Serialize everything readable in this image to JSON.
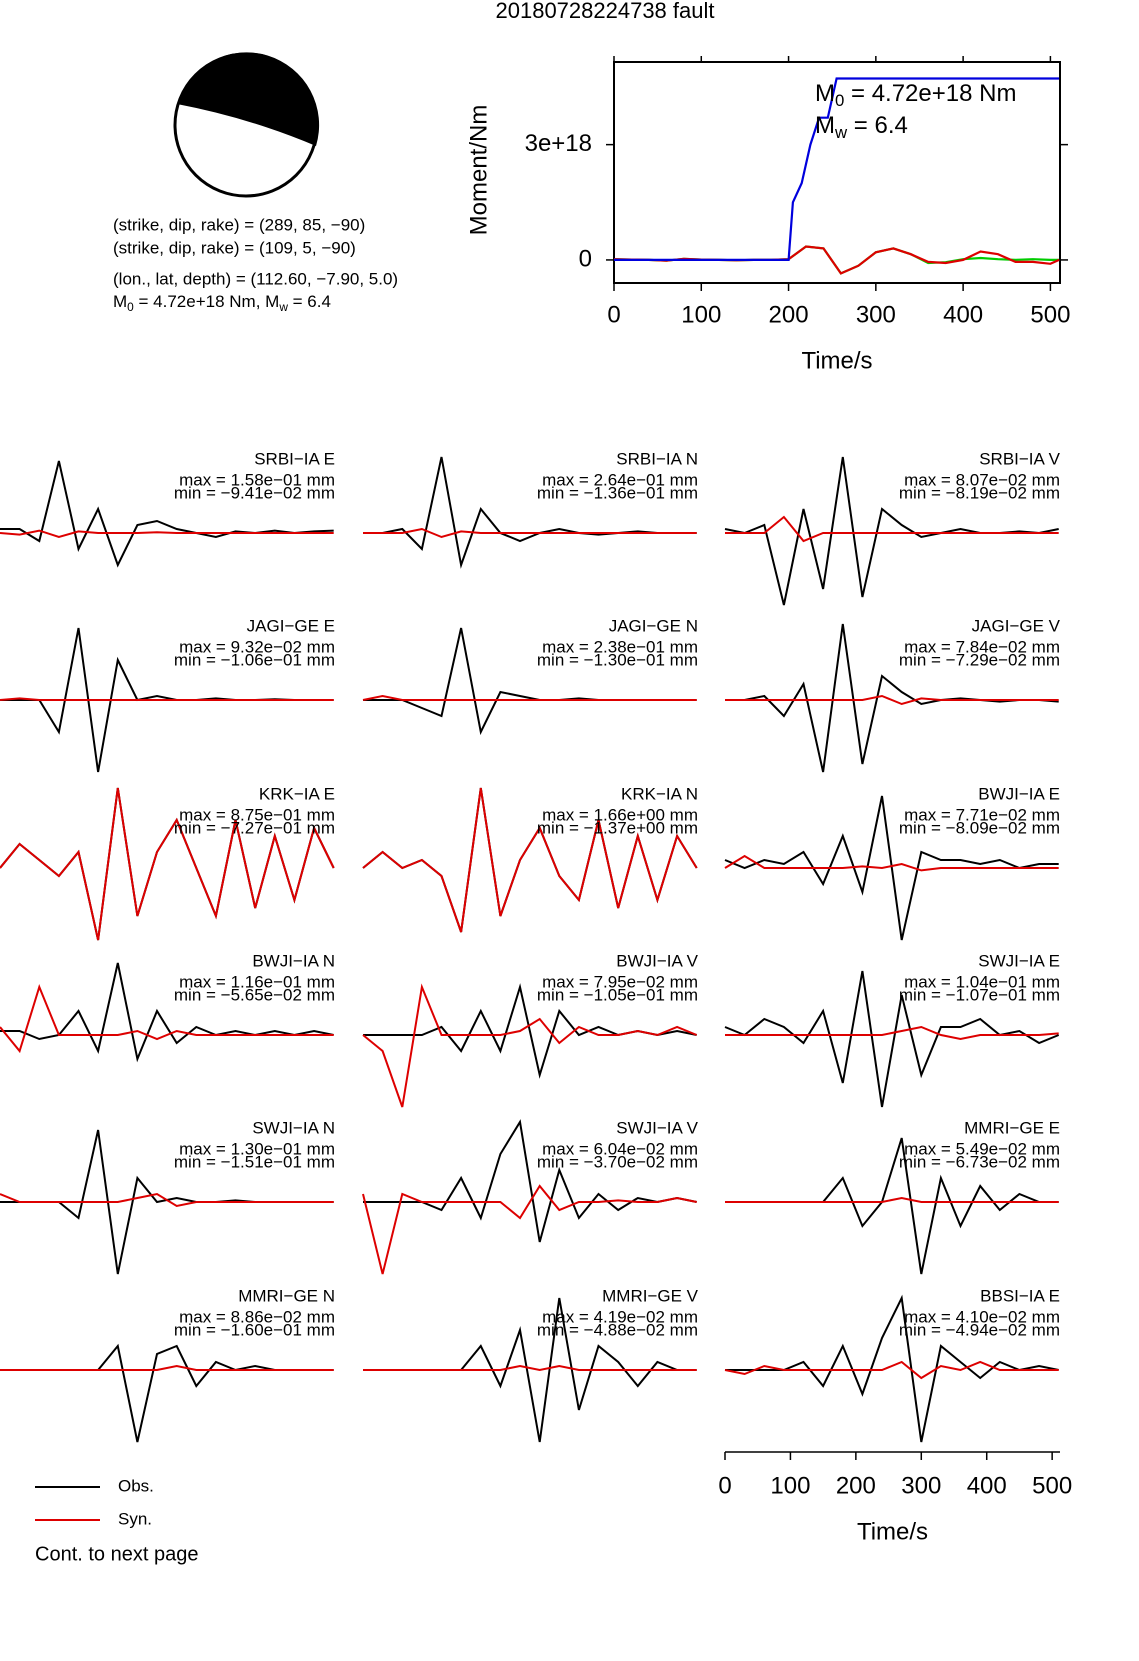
{
  "title": "20180728224738 fault",
  "mechanism": {
    "lines": [
      "(strike, dip, rake) = (289, 85, −90)",
      "(strike, dip, rake) = (109, 5, −90)",
      "(lon., lat, depth) = (112.60, −7.90, 5.0)"
    ],
    "moment_line": [
      {
        "text": "M"
      },
      {
        "sub": "0"
      },
      {
        "text": " = 4.72e+18 Nm, M"
      },
      {
        "sub": "w"
      },
      {
        "text": " = 6.4"
      }
    ]
  },
  "chart_data": [
    {
      "type": "line",
      "xlabel": "Time/s",
      "ylabel": "Moment/Nm",
      "xlim": [
        0,
        511
      ],
      "xticks": [
        0,
        100,
        200,
        300,
        400,
        500
      ],
      "ylim": [
        -6e+17,
        5.15e+18
      ],
      "yticks": [
        0,
        {
          "value": 3e+18,
          "label": "3e+18"
        }
      ],
      "annotations": [
        [
          {
            "text": "M"
          },
          {
            "sub": "0"
          },
          {
            "text": " = 4.72e+18 Nm"
          }
        ],
        [
          {
            "text": "M"
          },
          {
            "sub": "w"
          },
          {
            "text": " = 6.4"
          }
        ]
      ],
      "series": [
        {
          "color": "#00cc00",
          "x": [
            0,
            20,
            40,
            60,
            80,
            100,
            120,
            140,
            160,
            180,
            200,
            220,
            240,
            260,
            280,
            300,
            320,
            340,
            360,
            380,
            400,
            420,
            440,
            460,
            480,
            500,
            510
          ],
          "values": [
            2e+16,
            1e+16,
            0,
            -2e+16,
            3e+16,
            1e+16,
            0,
            -1e+16,
            0,
            0,
            2e+16,
            3.5e+17,
            3e+17,
            -3.5e+17,
            -1.5e+17,
            2e+17,
            3e+17,
            1.5e+17,
            -8e+16,
            -6e+16,
            2e+16,
            5e+16,
            2e+16,
            0,
            2e+16,
            0,
            0
          ]
        },
        {
          "color": "#dd0000",
          "x": [
            0,
            20,
            40,
            60,
            80,
            100,
            120,
            140,
            160,
            180,
            200,
            220,
            240,
            260,
            280,
            300,
            320,
            340,
            360,
            380,
            400,
            420,
            440,
            460,
            480,
            500,
            510
          ],
          "values": [
            2e+16,
            1e+16,
            0,
            -2e+16,
            3e+16,
            1e+16,
            0,
            -1e+16,
            0,
            0,
            2e+16,
            3.5e+17,
            3e+17,
            -3.5e+17,
            -1.5e+17,
            2e+17,
            3e+17,
            1.5e+17,
            -5e+16,
            -8e+16,
            0,
            2.2e+17,
            1.5e+17,
            -5e+16,
            -5e+16,
            -1e+17,
            0
          ]
        },
        {
          "color": "#0000dd",
          "x": [
            0,
            200,
            205,
            215,
            225,
            235,
            245,
            255,
            510
          ],
          "values": [
            0,
            0,
            1.5e+18,
            2e+18,
            3e+18,
            3.7e+18,
            3.7e+18,
            4.72e+18,
            4.72e+18
          ]
        }
      ]
    },
    {
      "type": "line",
      "xlabel": "Time/s",
      "xlim": [
        0,
        512
      ],
      "xticks": [
        0,
        100,
        200,
        300,
        400,
        500
      ],
      "x": [
        0,
        30,
        60,
        90,
        120,
        150,
        180,
        210,
        240,
        270,
        300,
        330,
        360,
        390,
        420,
        450,
        480,
        510
      ],
      "series": [
        {
          "name": "Obs.",
          "color": "#000000"
        },
        {
          "name": "Syn.",
          "color": "#dd0000"
        }
      ],
      "note": "Cont. to next page",
      "panels": [
        {
          "station": "SRBI−IA E",
          "max": "max = 1.58e−01 mm",
          "min": "min = −9.41e−02 mm",
          "obs": [
            0.05,
            0.05,
            -0.1,
            0.9,
            -0.2,
            0.3,
            -0.4,
            0.1,
            0.15,
            0.05,
            0,
            -0.05,
            0.02,
            0,
            0.03,
            0,
            0.02,
            0.03
          ],
          "syn": [
            0,
            -0.02,
            0.03,
            -0.05,
            0.02,
            0,
            0,
            0,
            0.01,
            0,
            0,
            0,
            0,
            0,
            0,
            0,
            0,
            0
          ]
        },
        {
          "station": "SRBI−IA N",
          "max": "max = 2.64e−01 mm",
          "min": "min = −1.36e−01 mm",
          "obs": [
            0,
            0,
            0.05,
            -0.2,
            0.95,
            -0.4,
            0.3,
            0,
            -0.1,
            0,
            0.05,
            0,
            -0.02,
            0,
            0.02,
            0,
            0,
            0
          ],
          "syn": [
            0,
            0,
            0,
            0.05,
            -0.05,
            0.02,
            0,
            0,
            0,
            0,
            0,
            0,
            0,
            0,
            0,
            0,
            0,
            0
          ]
        },
        {
          "station": "SRBI−IA V",
          "max": "max = 8.07e−02 mm",
          "min": "min = −8.19e−02 mm",
          "obs": [
            0.05,
            0,
            0.1,
            -0.9,
            0.3,
            -0.7,
            0.95,
            -0.8,
            0.3,
            0.1,
            -0.05,
            0,
            0.05,
            0,
            0,
            0.02,
            0,
            0.05
          ],
          "syn": [
            0,
            0,
            0,
            0.2,
            -0.1,
            0,
            0,
            0,
            0,
            0,
            0,
            0,
            0,
            0,
            0,
            0,
            0,
            0
          ]
        },
        {
          "station": "JAGI−GE E",
          "max": "max = 9.32e−02 mm",
          "min": "min = −1.06e−01 mm",
          "obs": [
            0,
            0,
            0,
            -0.4,
            0.9,
            -0.9,
            0.5,
            0,
            0.05,
            0,
            0,
            0.02,
            0,
            0,
            0.01,
            0,
            0,
            0
          ],
          "syn": [
            0,
            0.02,
            0,
            0,
            0,
            0,
            0,
            0,
            0,
            0,
            0,
            0,
            0,
            0,
            0,
            0,
            0,
            0
          ]
        },
        {
          "station": "JAGI−GE N",
          "max": "max = 2.38e−01 mm",
          "min": "min = −1.30e−01 mm",
          "obs": [
            0,
            0,
            0,
            -0.1,
            -0.2,
            0.9,
            -0.4,
            0.1,
            0.05,
            0,
            0,
            0.02,
            0,
            0,
            0,
            0,
            0,
            0
          ],
          "syn": [
            0,
            0.05,
            0,
            0,
            0,
            0,
            0,
            0,
            0,
            0,
            0,
            0,
            0,
            0,
            0,
            0,
            0,
            0
          ]
        },
        {
          "station": "JAGI−GE V",
          "max": "max = 7.84e−02 mm",
          "min": "min = −7.29e−02 mm",
          "obs": [
            0,
            0,
            0.05,
            -0.2,
            0.2,
            -0.9,
            0.95,
            -0.8,
            0.3,
            0.1,
            -0.05,
            0,
            0.02,
            0,
            -0.02,
            0,
            0,
            -0.02
          ],
          "syn": [
            0,
            0,
            0,
            0,
            0,
            0,
            0,
            0,
            0.05,
            -0.05,
            0.02,
            0,
            0,
            0,
            0,
            0,
            0,
            0
          ]
        },
        {
          "station": "KRK−IA E",
          "max": "max = 8.75e−01 mm",
          "min": "min = −7.27e−01 mm",
          "obs": [
            0,
            0.3,
            0.1,
            -0.1,
            0.2,
            -0.9,
            1.0,
            -0.6,
            0.2,
            0.6,
            0,
            -0.6,
            0.6,
            -0.5,
            0.4,
            -0.4,
            0.5,
            0
          ],
          "syn": [
            0,
            0.3,
            0.1,
            -0.1,
            0.2,
            -0.9,
            1.0,
            -0.6,
            0.2,
            0.6,
            0,
            -0.6,
            0.6,
            -0.5,
            0.4,
            -0.4,
            0.5,
            0
          ]
        },
        {
          "station": "KRK−IA N",
          "max": "max = 1.66e+00 mm",
          "min": "min = −1.37e+00 mm",
          "obs": [
            0,
            0.2,
            0,
            0.1,
            -0.1,
            -0.8,
            1.0,
            -0.6,
            0.1,
            0.5,
            -0.1,
            -0.4,
            0.6,
            -0.5,
            0.4,
            -0.4,
            0.4,
            0
          ],
          "syn": [
            0,
            0.2,
            0,
            0.1,
            -0.1,
            -0.8,
            1.0,
            -0.6,
            0.1,
            0.5,
            -0.1,
            -0.4,
            0.6,
            -0.5,
            0.4,
            -0.4,
            0.4,
            0
          ]
        },
        {
          "station": "BWJI−IA E",
          "max": "max = 7.71e−02 mm",
          "min": "min = −8.09e−02 mm",
          "obs": [
            0.1,
            0,
            0.1,
            0.05,
            0.2,
            -0.2,
            0.4,
            -0.3,
            0.9,
            -0.9,
            0.2,
            0.1,
            0.1,
            0.05,
            0.1,
            0,
            0.05,
            0.05
          ],
          "syn": [
            0,
            0.15,
            0,
            0,
            0,
            0,
            0,
            0.02,
            0,
            0.05,
            -0.03,
            0,
            0,
            0,
            0,
            0,
            0,
            0
          ]
        },
        {
          "station": "BWJI−IA N",
          "max": "max = 1.16e−01 mm",
          "min": "min = −5.65e−02 mm",
          "obs": [
            0.05,
            0.05,
            -0.05,
            0,
            0.3,
            -0.2,
            0.9,
            -0.3,
            0.3,
            -0.1,
            0.1,
            0,
            0.05,
            0,
            0.05,
            0,
            0.05,
            0
          ],
          "syn": [
            0.1,
            -0.2,
            0.6,
            0,
            0,
            0,
            0,
            0.05,
            -0.05,
            0.05,
            0,
            0,
            0,
            0,
            0,
            0,
            0,
            0
          ]
        },
        {
          "station": "BWJI−IA V",
          "max": "max = 7.95e−02 mm",
          "min": "min = −1.05e−01 mm",
          "obs": [
            0,
            0,
            0,
            0,
            0.1,
            -0.2,
            0.3,
            -0.2,
            0.6,
            -0.5,
            0.3,
            0,
            0.1,
            0,
            0.05,
            0,
            0.05,
            0
          ],
          "syn": [
            0,
            -0.2,
            -0.9,
            0.6,
            0,
            0,
            0,
            0,
            0.05,
            0.2,
            -0.1,
            0.1,
            0,
            0,
            0.05,
            0,
            0.1,
            0
          ]
        },
        {
          "station": "SWJI−IA E",
          "max": "max = 1.04e−01 mm",
          "min": "min = −1.07e−01 mm",
          "obs": [
            0.1,
            0,
            0.2,
            0.1,
            -0.1,
            0.3,
            -0.6,
            0.8,
            -0.9,
            0.5,
            -0.5,
            0.1,
            0.1,
            0.2,
            0,
            0.05,
            -0.1,
            0
          ],
          "syn": [
            0,
            0,
            0,
            0,
            0,
            0,
            0,
            0,
            0,
            0.05,
            0.1,
            0,
            -0.05,
            0,
            0,
            0,
            0,
            0.02
          ]
        },
        {
          "station": "SWJI−IA N",
          "max": "max = 1.30e−01 mm",
          "min": "min = −1.51e−01 mm",
          "obs": [
            0,
            0,
            0,
            0,
            -0.2,
            0.9,
            -0.9,
            0.3,
            0,
            0.05,
            0,
            0,
            0.02,
            0,
            0,
            0,
            0,
            0
          ],
          "syn": [
            0.1,
            0,
            0,
            0,
            0,
            0,
            0,
            0.05,
            0.1,
            -0.05,
            0,
            0,
            0,
            0,
            0,
            0,
            0,
            0
          ]
        },
        {
          "station": "SWJI−IA V",
          "max": "max = 6.04e−02 mm",
          "min": "min = −3.70e−02 mm",
          "obs": [
            0,
            0,
            0,
            0,
            -0.1,
            0.3,
            -0.2,
            0.6,
            1.0,
            -0.5,
            0.4,
            -0.2,
            0.1,
            -0.1,
            0.05,
            0,
            0.05,
            0
          ],
          "syn": [
            0.1,
            -0.9,
            0.1,
            0,
            0,
            0,
            0,
            0,
            -0.2,
            0.2,
            -0.1,
            0,
            0,
            0.02,
            0,
            0,
            0.05,
            0
          ]
        },
        {
          "station": "MMRI−GE E",
          "max": "max = 5.49e−02 mm",
          "min": "min = −6.73e−02 mm",
          "obs": [
            0,
            0,
            0,
            0,
            0,
            0,
            0.3,
            -0.3,
            0,
            0.8,
            -0.9,
            0.3,
            -0.3,
            0.2,
            -0.1,
            0.1,
            0,
            0
          ],
          "syn": [
            0,
            0,
            0,
            0,
            0,
            0,
            0,
            0,
            0,
            0.05,
            0,
            0,
            0,
            0,
            0,
            0,
            0,
            0
          ]
        },
        {
          "station": "MMRI−GE N",
          "max": "max = 8.86e−02 mm",
          "min": "min = −1.60e−01 mm",
          "obs": [
            0,
            0,
            0,
            0,
            0,
            0,
            0.3,
            -0.9,
            0.2,
            0.3,
            -0.2,
            0.1,
            0,
            0.05,
            0,
            0,
            0,
            0
          ],
          "syn": [
            0,
            0,
            0,
            0,
            0,
            0,
            0,
            0,
            0,
            0.05,
            0,
            0,
            0,
            0,
            0,
            0,
            0,
            0
          ]
        },
        {
          "station": "MMRI−GE V",
          "max": "max = 4.19e−02 mm",
          "min": "min = −4.88e−02 mm",
          "obs": [
            0,
            0,
            0,
            0,
            0,
            0,
            0.3,
            -0.2,
            0.5,
            -0.9,
            0.9,
            -0.5,
            0.3,
            0.1,
            -0.2,
            0.1,
            0,
            0
          ],
          "syn": [
            0,
            0,
            0,
            0,
            0,
            0,
            0,
            0,
            0.05,
            0,
            0.05,
            0,
            0,
            0,
            0,
            0,
            0,
            0
          ]
        },
        {
          "station": "BBSI−IA E",
          "max": "max = 4.10e−02 mm",
          "min": "min = −4.94e−02 mm",
          "obs": [
            0,
            0,
            0,
            0,
            0.1,
            -0.2,
            0.3,
            -0.3,
            0.4,
            0.9,
            -0.9,
            0.3,
            0.1,
            -0.1,
            0.1,
            0,
            0.05,
            0
          ],
          "syn": [
            0,
            -0.05,
            0.05,
            0,
            0,
            0,
            0,
            0,
            0,
            0.1,
            -0.1,
            0.05,
            0,
            0.1,
            0,
            0,
            0,
            0
          ]
        }
      ]
    }
  ]
}
